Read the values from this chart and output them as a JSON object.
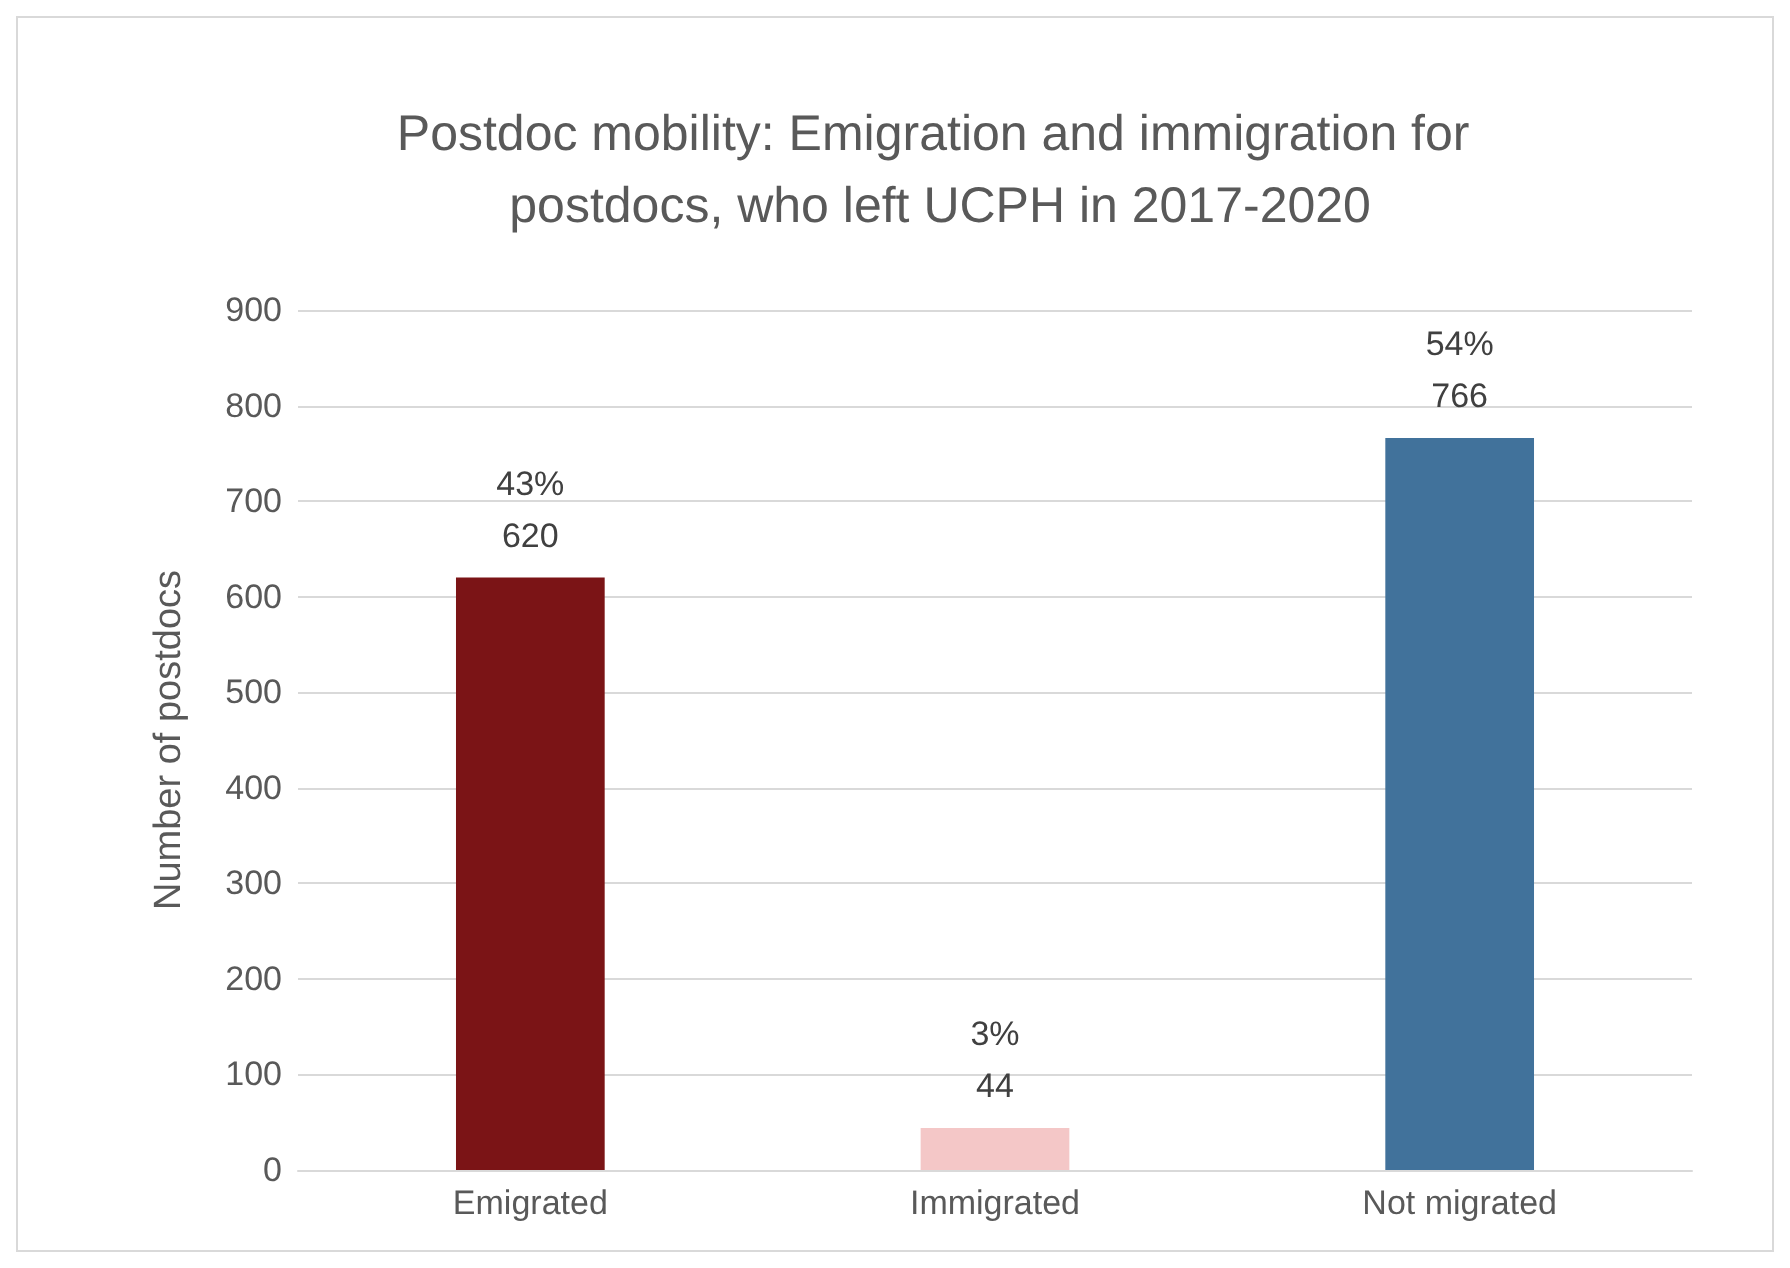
{
  "chart_data": {
    "type": "bar",
    "title": "Postdoc mobility: Emigration and immigration for postdocs, who left UCPH in 2017-2020",
    "ylabel": "Number of postdocs",
    "categories": [
      "Emigrated",
      "Immigrated",
      "Not migrated"
    ],
    "values": [
      620,
      44,
      766
    ],
    "colors": [
      "#7b1416",
      "#f4c7c7",
      "#41729b"
    ],
    "value_labels": [
      "43%\n620",
      "3%\n44",
      "54%\n766"
    ],
    "ylim": [
      0,
      900
    ],
    "yticks": [
      0,
      100,
      200,
      300,
      400,
      500,
      600,
      700,
      800,
      900
    ],
    "grid": "y"
  }
}
